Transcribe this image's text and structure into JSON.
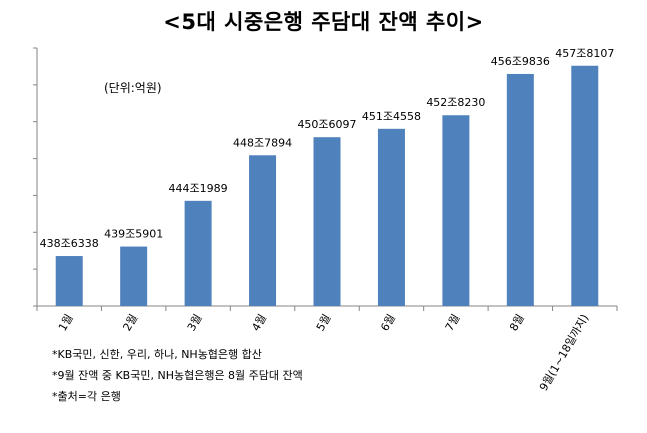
{
  "title": "<5대 시중은행 주담대 잔액 추이>",
  "unit_label": "(단위:억원)",
  "chart_data": {
    "type": "bar",
    "title": "<5대 시중은행 주담대 잔액 추이>",
    "unit": "억원",
    "categories": [
      "1월",
      "2월",
      "3월",
      "4월",
      "5월",
      "6월",
      "7월",
      "8월",
      "9월(1~18일까지)"
    ],
    "values": [
      4386338,
      4395901,
      4441989,
      4487894,
      4506097,
      4514558,
      4528230,
      4569836,
      4578107
    ],
    "data_labels": [
      "438조6338",
      "439조5901",
      "444조1989",
      "448조7894",
      "450조6097",
      "451조4558",
      "452조8230",
      "456조9836",
      "457조8107"
    ],
    "bar_color": "#4f81bd",
    "grid": false
  },
  "notes": [
    "*KB국민, 신한, 우리, 하나, NH농협은행 합산",
    "*9월 잔액 중 KB국민, NH농협은행은 8월 주담대 잔액",
    "*출처=각 은행"
  ]
}
